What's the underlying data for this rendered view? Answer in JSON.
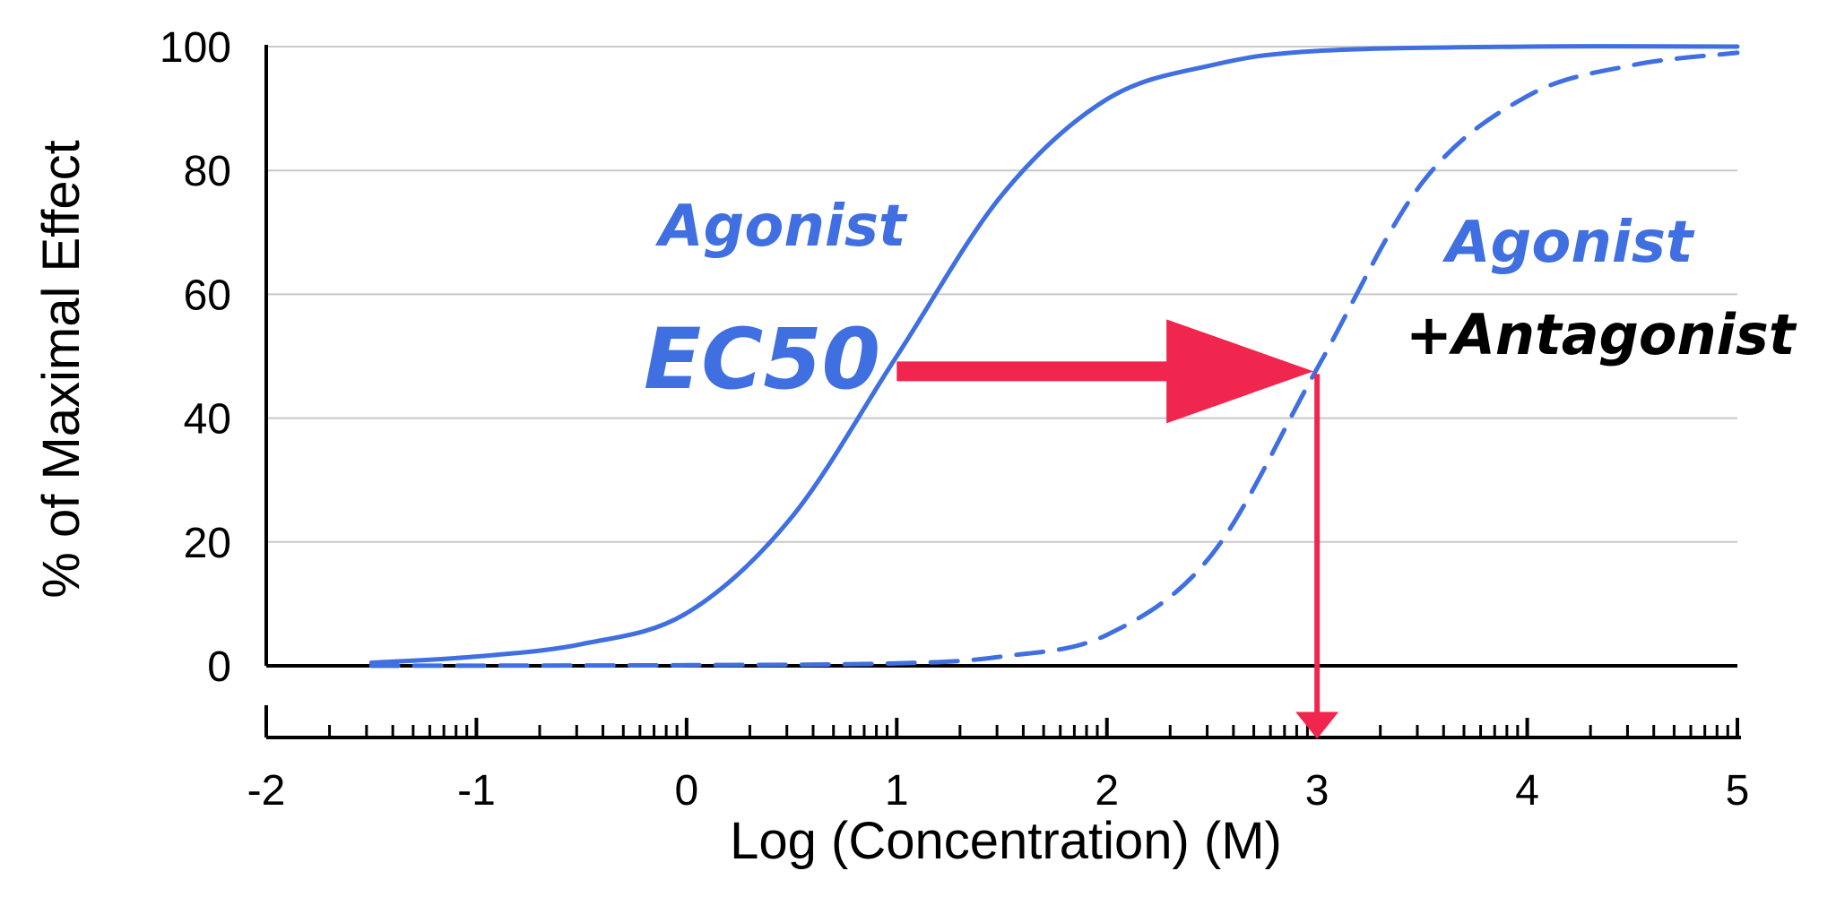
{
  "chart_data": {
    "type": "line",
    "title": "",
    "xlabel": "Log (Concentration) (M)",
    "ylabel": "% of Maximal Effect",
    "xlim": [
      -2,
      5
    ],
    "ylim": [
      0,
      100
    ],
    "x_ticks": [
      -2,
      -1,
      0,
      1,
      2,
      3,
      4,
      5
    ],
    "y_ticks": [
      0,
      20,
      40,
      60,
      80,
      100
    ],
    "grid": "horizontal",
    "series": [
      {
        "style": "solid",
        "color": "#3f6fe0",
        "x": [
          -1.5,
          -1.0,
          -0.5,
          0.0,
          0.5,
          1.0,
          1.5,
          2.0,
          2.5,
          3.0,
          4.0,
          5.0
        ],
        "y": [
          0.5,
          1.5,
          3.5,
          8.5,
          24.0,
          50.0,
          76.0,
          91.5,
          97.0,
          99.3,
          100.0,
          100.0
        ]
      },
      {
        "style": "dashed",
        "color": "#3f6fe0",
        "x": [
          -1.5,
          0.0,
          1.0,
          1.5,
          2.0,
          2.5,
          3.0,
          3.5,
          4.0,
          4.5,
          5.0
        ],
        "y": [
          0.0,
          0.1,
          0.4,
          1.5,
          5.0,
          18.0,
          48.0,
          78.0,
          92.0,
          97.0,
          99.0
        ]
      }
    ],
    "annotations": {
      "agonist_label": "Agonist",
      "agonist_antagonist_label_1": "Agonist",
      "agonist_antagonist_label_2": "+Antagonist",
      "ec50_label": "EC50",
      "shift_arrow": {
        "from": [
          1.0,
          48
        ],
        "to": [
          3.0,
          48
        ],
        "color": "#f0264e"
      },
      "drop_arrow": {
        "x": 3.0,
        "from_y": 48,
        "to_y": -6,
        "color": "#f0264e"
      }
    },
    "colors": {
      "curve": "#3f6fe0",
      "arrow": "#f0264e",
      "grid": "#c8c8c8",
      "label_dark": "#000000"
    }
  }
}
